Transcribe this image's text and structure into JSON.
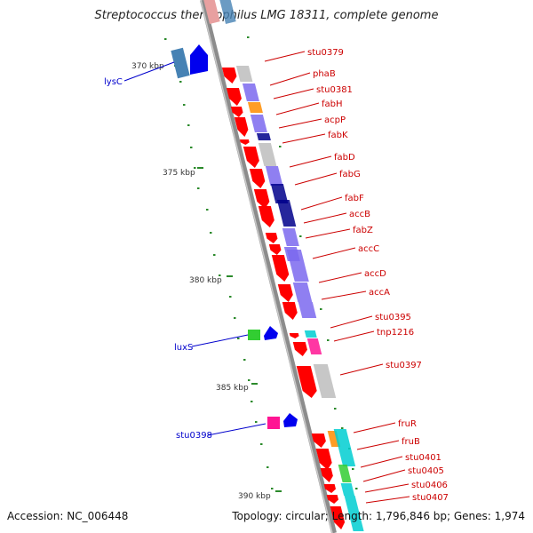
{
  "title": "Streptococcus thermophilus LMG 18311, complete genome",
  "accession_text": "Accession: NC_006448",
  "topology_text": "Topology: circular; Length: 1,796,846 bp; Genes: 1,974",
  "kbp_labels": [
    "370 kbp",
    "375 kbp",
    "380 kbp",
    "385 kbp",
    "390 kbp"
  ],
  "left_genes": [
    "lysC",
    "luxS",
    "stu0398"
  ],
  "right_genes": [
    "stu0379",
    "phaB",
    "stu0381",
    "fabH",
    "acpP",
    "fabK",
    "fabD",
    "fabG",
    "fabF",
    "accB",
    "fabZ",
    "accC",
    "accD",
    "accA",
    "stu0395",
    "tnp1216",
    "stu0397",
    "fruR",
    "fruB",
    "stu0401",
    "stu0405",
    "stu0406",
    "stu0407"
  ],
  "colors": {
    "backbone": "#8c8c8c",
    "left_label": "#0000cc",
    "right_label": "#cc0000",
    "tick_green": "#2b8a2b",
    "forward_strand": "#ff0000",
    "reverse_strand": "#0000ee",
    "cog_purple": "#7b68ee",
    "cog_navy": "#00008b",
    "cog_gray": "#bdbdbd",
    "cog_orange": "#ff8c00",
    "cog_cyan": "#00ced1",
    "cog_magenta": "#ff1493",
    "cog_green": "#32cd32",
    "cog_steel": "#4682b4"
  }
}
